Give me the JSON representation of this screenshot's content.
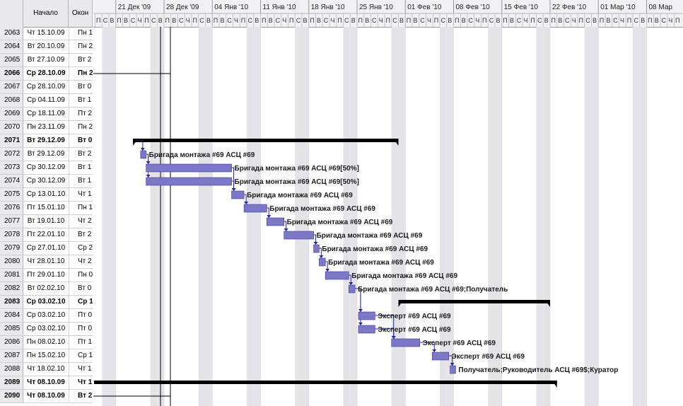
{
  "table": {
    "headers": {
      "start": "Начало",
      "end": "Окон"
    },
    "rows": [
      {
        "id": "2063",
        "start": "Чт 15.10.09",
        "end": "Пн 1",
        "bold": false
      },
      {
        "id": "2064",
        "start": "Вт 20.10.09",
        "end": "Пн 2",
        "bold": false
      },
      {
        "id": "2065",
        "start": "Вт 27.10.09",
        "end": "Вт 2",
        "bold": false
      },
      {
        "id": "2066",
        "start": "Ср 28.10.09",
        "end": "Пн 2",
        "bold": true
      },
      {
        "id": "2067",
        "start": "Ср 28.10.09",
        "end": "Вт 0",
        "bold": false
      },
      {
        "id": "2068",
        "start": "Ср 04.11.09",
        "end": "Вт 1",
        "bold": false
      },
      {
        "id": "2069",
        "start": "Ср 18.11.09",
        "end": "Пт 2",
        "bold": false
      },
      {
        "id": "2070",
        "start": "Пн 23.11.09",
        "end": "Пн 2",
        "bold": false
      },
      {
        "id": "2071",
        "start": "Вт 29.12.09",
        "end": "Вт 0",
        "bold": true
      },
      {
        "id": "2072",
        "start": "Вт 29.12.09",
        "end": "Вт 2",
        "bold": false
      },
      {
        "id": "2073",
        "start": "Ср 30.12.09",
        "end": "Вт 1",
        "bold": false
      },
      {
        "id": "2074",
        "start": "Ср 30.12.09",
        "end": "Вт 1",
        "bold": false
      },
      {
        "id": "2075",
        "start": "Ср 13.01.10",
        "end": "Чт 1",
        "bold": false
      },
      {
        "id": "2076",
        "start": "Пт 15.01.10",
        "end": "Пн 1",
        "bold": false
      },
      {
        "id": "2077",
        "start": "Вт 19.01.10",
        "end": "Чт 2",
        "bold": false
      },
      {
        "id": "2078",
        "start": "Пт 22.01.10",
        "end": "Вт 2",
        "bold": false
      },
      {
        "id": "2079",
        "start": "Ср 27.01.10",
        "end": "Ср 2",
        "bold": false
      },
      {
        "id": "2080",
        "start": "Чт 28.01.10",
        "end": "Чт 2",
        "bold": false
      },
      {
        "id": "2081",
        "start": "Пт 29.01.10",
        "end": "Пн 0",
        "bold": false
      },
      {
        "id": "2082",
        "start": "Вт 02.02.10",
        "end": "Вт 0",
        "bold": false
      },
      {
        "id": "2083",
        "start": "Ср 03.02.10",
        "end": "Ср 1",
        "bold": true
      },
      {
        "id": "2084",
        "start": "Ср 03.02.10",
        "end": "Пт 0",
        "bold": false
      },
      {
        "id": "2085",
        "start": "Ср 03.02.10",
        "end": "Пт 0",
        "bold": false
      },
      {
        "id": "2086",
        "start": "Пн 08.02.10",
        "end": "Пт 1",
        "bold": false
      },
      {
        "id": "2087",
        "start": "Пн 15.02.10",
        "end": "Ср 1",
        "bold": false
      },
      {
        "id": "2088",
        "start": "Чт 18.02.10",
        "end": "Чт 1",
        "bold": false
      },
      {
        "id": "2089",
        "start": "Чт 08.10.09",
        "end": "Чт 1",
        "bold": true
      },
      {
        "id": "2090",
        "start": "Чт 08.10.09",
        "end": "Вт 2",
        "bold": true
      }
    ]
  },
  "timescale": {
    "weeks": [
      "21 Дек '09",
      "28 Дек '09",
      "04 Янв '10",
      "11 Янв '10",
      "18 Янв '10",
      "25 Янв '10",
      "01 Фев '10",
      "08 Фев '10",
      "15 Фев '10",
      "22 Фев '10",
      "01 Мар '10",
      "08 Мар"
    ],
    "day_letters": [
      "П",
      "В",
      "С",
      "Ч",
      "П",
      "С",
      "В"
    ]
  },
  "gantt": {
    "summaries": [
      {
        "row": 8,
        "start_day": -4.5,
        "end_day": 34
      },
      {
        "row": 20,
        "start_day": 34,
        "end_day": 56
      },
      {
        "row": 26,
        "start_day": -40,
        "end_day": 57
      }
    ],
    "bars": [
      {
        "row": 9,
        "start_day": -3.4,
        "end_day": -2.6,
        "label": "Бригада монтажа #69 АСЦ #69"
      },
      {
        "row": 10,
        "start_day": -2.6,
        "end_day": 9.8,
        "label": "Бригада монтажа #69 АСЦ #69[50%]"
      },
      {
        "row": 11,
        "start_day": -2.6,
        "end_day": 9.8,
        "label": "Бригада монтажа #69 АСЦ #69[50%]"
      },
      {
        "row": 12,
        "start_day": 9.8,
        "end_day": 11.6,
        "label": "Бригада монтажа #69 АСЦ #69"
      },
      {
        "row": 13,
        "start_day": 11.6,
        "end_day": 14.9,
        "label": "Бригада монтажа #69 АСЦ #69"
      },
      {
        "row": 14,
        "start_day": 14.9,
        "end_day": 17.4,
        "label": "Бригада монтажа #69 АСЦ #69"
      },
      {
        "row": 15,
        "start_day": 17.4,
        "end_day": 21.7,
        "label": "Бригада монтажа #69 АСЦ #69"
      },
      {
        "row": 16,
        "start_day": 21.7,
        "end_day": 22.5,
        "label": "Бригада монтажа #69 АСЦ #69"
      },
      {
        "row": 17,
        "start_day": 22.5,
        "end_day": 23.4,
        "label": "Бригада монтажа #69 АСЦ #69"
      },
      {
        "row": 18,
        "start_day": 23.4,
        "end_day": 26.8,
        "label": "Бригада монтажа #69 АСЦ #69"
      },
      {
        "row": 19,
        "start_day": 26.8,
        "end_day": 27.7,
        "label": "Бригада монтажа #69 АСЦ #69;Получатель"
      },
      {
        "row": 21,
        "start_day": 28.2,
        "end_day": 30.6,
        "label": "Эксперт #69 АСЦ #69"
      },
      {
        "row": 22,
        "start_day": 28.2,
        "end_day": 30.6,
        "label": "Эксперт #69 АСЦ #69"
      },
      {
        "row": 23,
        "start_day": 33.0,
        "end_day": 37.1,
        "label": "Эксперт #69 АСЦ #69"
      },
      {
        "row": 24,
        "start_day": 38.9,
        "end_day": 41.3,
        "label": "Эксперт #69 АСЦ #69"
      },
      {
        "row": 25,
        "start_day": 41.5,
        "end_day": 42.3,
        "label": "Получатель;Руководитель АСЦ #69$;Куратор"
      }
    ],
    "links": [
      {
        "from": 8,
        "to": 9
      },
      {
        "from": 9,
        "to": 10
      },
      {
        "from": 9,
        "to": 11
      },
      {
        "from": 10,
        "to": 12
      },
      {
        "from": 11,
        "to": 12
      },
      {
        "from": 12,
        "to": 13
      },
      {
        "from": 13,
        "to": 14
      },
      {
        "from": 14,
        "to": 15
      },
      {
        "from": 15,
        "to": 16
      },
      {
        "from": 16,
        "to": 17
      },
      {
        "from": 17,
        "to": 18
      },
      {
        "from": 18,
        "to": 19
      },
      {
        "from": 19,
        "to": 21
      },
      {
        "from": 19,
        "to": 22
      },
      {
        "from": 21,
        "to": 23
      },
      {
        "from": 22,
        "to": 23
      },
      {
        "from": 23,
        "to": 24
      },
      {
        "from": 24,
        "to": 25
      }
    ],
    "colors": {
      "bar": "#7b78c8",
      "bar_border": "#3b3798",
      "summary": "#000000",
      "link": "#2424a0",
      "weekend": "#e4e4e8",
      "grid": "#d6d6dc"
    }
  }
}
